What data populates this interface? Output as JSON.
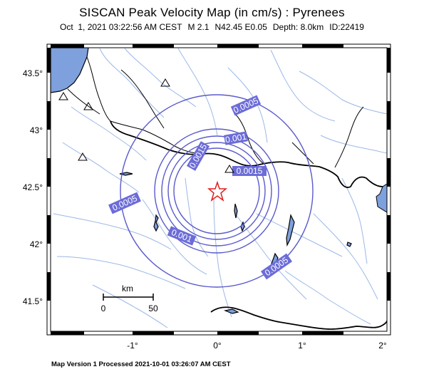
{
  "title": "SISCAN Peak Velocity Map (in cm/s) : Pyrenees",
  "subtitle": {
    "datetime": "Oct  1, 2021 03:22:56 AM CEST",
    "magnitude": "M 2.1",
    "location": "N42.45 E0.05",
    "depth": "Depth: 8.0km",
    "id": "ID:22419"
  },
  "footer": "Map Version 1 Processed 2021-10-01 03:26:07 AM CEST",
  "axes": {
    "x_ticks": [
      "-1°",
      "0°",
      "1°",
      "2°"
    ],
    "y_ticks": [
      "43.5°",
      "43°",
      "42.5°",
      "42°",
      "41.5°"
    ],
    "lon_range": [
      -2.0,
      2.05
    ],
    "lat_range": [
      41.2,
      43.7
    ]
  },
  "scale_bar": {
    "unit": "km",
    "start": "0",
    "end": "50"
  },
  "epicenter": {
    "lat": 42.45,
    "lon": 0.05,
    "symbol": "star",
    "color": "#e02020"
  },
  "contours": [
    {
      "label": "0.0005",
      "color": "#5a5acc"
    },
    {
      "label": "0.001",
      "color": "#5a5acc"
    },
    {
      "label": "0.0015",
      "color": "#5a5acc"
    }
  ],
  "colors": {
    "sea": "#7ea0dc",
    "contour": "#5a5acc",
    "label_bg": "#6c6cd8",
    "river": "#9bb8e6"
  },
  "stations": "triangle-icons"
}
